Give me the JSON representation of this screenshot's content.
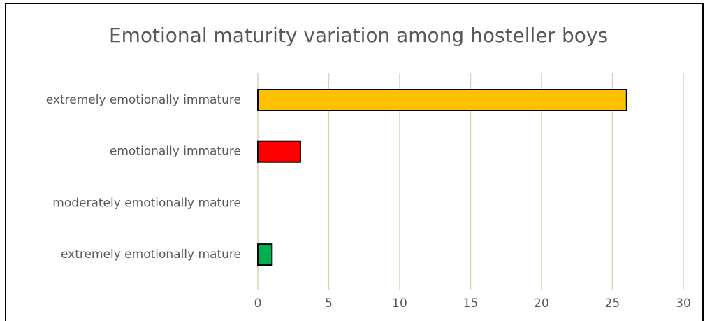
{
  "chart_data": {
    "type": "hbar",
    "title": "Emotional maturity variation among hosteller boys",
    "categories": [
      "extremely emotionally immature",
      "emotionally immature",
      "moderately emotionally mature",
      "extremely emotionally mature"
    ],
    "values": [
      26,
      3,
      0,
      1
    ],
    "colors": [
      "#ffc000",
      "#ff0000",
      "#00b050",
      "#00b050"
    ],
    "xlim": [
      0,
      30
    ],
    "xticks": [
      0,
      5,
      10,
      15,
      20,
      25,
      30
    ],
    "grid": true
  }
}
